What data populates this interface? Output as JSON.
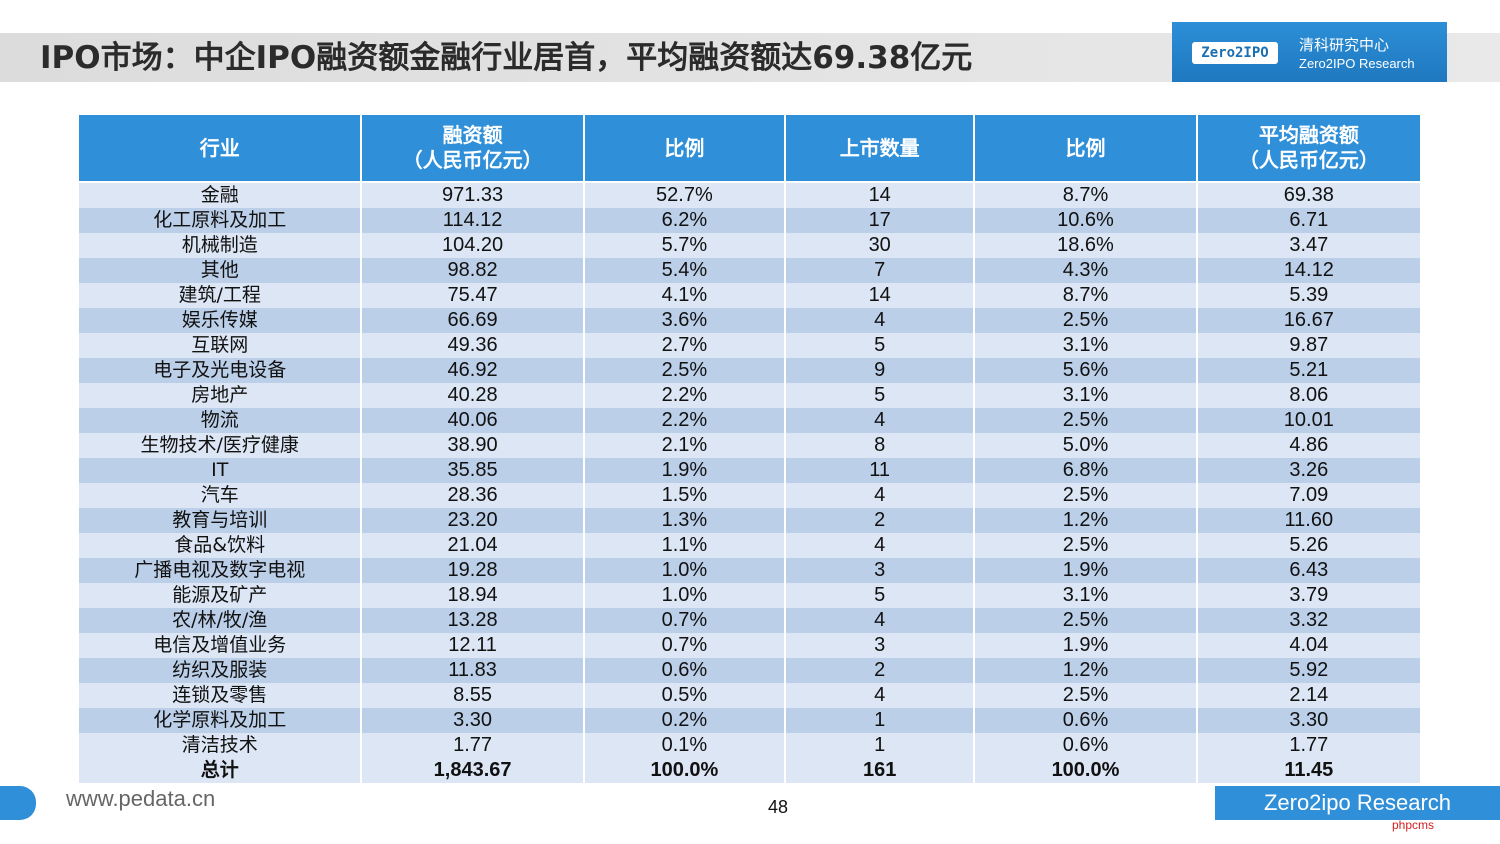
{
  "title": "IPO市场：中企IPO融资额金融行业居首，平均融资额达69.38亿元",
  "logo": {
    "badge": "Zero2IPO",
    "cn": "清科研究中心",
    "en": "Zero2IPO Research"
  },
  "table": {
    "headers": [
      {
        "line1": "行业",
        "line2": ""
      },
      {
        "line1": "融资额",
        "line2": "（人民币亿元）"
      },
      {
        "line1": "比例",
        "line2": ""
      },
      {
        "line1": "上市数量",
        "line2": ""
      },
      {
        "line1": "比例",
        "line2": ""
      },
      {
        "line1": "平均融资额",
        "line2": "（人民币亿元）"
      }
    ],
    "rows": [
      [
        "金融",
        "971.33",
        "52.7%",
        "14",
        "8.7%",
        "69.38"
      ],
      [
        "化工原料及加工",
        "114.12",
        "6.2%",
        "17",
        "10.6%",
        "6.71"
      ],
      [
        "机械制造",
        "104.20",
        "5.7%",
        "30",
        "18.6%",
        "3.47"
      ],
      [
        "其他",
        "98.82",
        "5.4%",
        "7",
        "4.3%",
        "14.12"
      ],
      [
        "建筑/工程",
        "75.47",
        "4.1%",
        "14",
        "8.7%",
        "5.39"
      ],
      [
        "娱乐传媒",
        "66.69",
        "3.6%",
        "4",
        "2.5%",
        "16.67"
      ],
      [
        "互联网",
        "49.36",
        "2.7%",
        "5",
        "3.1%",
        "9.87"
      ],
      [
        "电子及光电设备",
        "46.92",
        "2.5%",
        "9",
        "5.6%",
        "5.21"
      ],
      [
        "房地产",
        "40.28",
        "2.2%",
        "5",
        "3.1%",
        "8.06"
      ],
      [
        "物流",
        "40.06",
        "2.2%",
        "4",
        "2.5%",
        "10.01"
      ],
      [
        "生物技术/医疗健康",
        "38.90",
        "2.1%",
        "8",
        "5.0%",
        "4.86"
      ],
      [
        "IT",
        "35.85",
        "1.9%",
        "11",
        "6.8%",
        "3.26"
      ],
      [
        "汽车",
        "28.36",
        "1.5%",
        "4",
        "2.5%",
        "7.09"
      ],
      [
        "教育与培训",
        "23.20",
        "1.3%",
        "2",
        "1.2%",
        "11.60"
      ],
      [
        "食品&饮料",
        "21.04",
        "1.1%",
        "4",
        "2.5%",
        "5.26"
      ],
      [
        "广播电视及数字电视",
        "19.28",
        "1.0%",
        "3",
        "1.9%",
        "6.43"
      ],
      [
        "能源及矿产",
        "18.94",
        "1.0%",
        "5",
        "3.1%",
        "3.79"
      ],
      [
        "农/林/牧/渔",
        "13.28",
        "0.7%",
        "4",
        "2.5%",
        "3.32"
      ],
      [
        "电信及增值业务",
        "12.11",
        "0.7%",
        "3",
        "1.9%",
        "4.04"
      ],
      [
        "纺织及服装",
        "11.83",
        "0.6%",
        "2",
        "1.2%",
        "5.92"
      ],
      [
        "连锁及零售",
        "8.55",
        "0.5%",
        "4",
        "2.5%",
        "2.14"
      ],
      [
        "化学原料及加工",
        "3.30",
        "0.2%",
        "1",
        "0.6%",
        "3.30"
      ],
      [
        "清洁技术",
        "1.77",
        "0.1%",
        "1",
        "0.6%",
        "1.77"
      ]
    ],
    "total": [
      "总计",
      "1,843.67",
      "100.0%",
      "161",
      "100.0%",
      "11.45"
    ]
  },
  "footer": {
    "url": "www.pedata.cn",
    "page": "48",
    "brand": "Zero2ipo Research",
    "watermark": "phpcms"
  },
  "colors": {
    "header_blue": "#2f8fd8",
    "row_light": "#dce6f4",
    "row_dark": "#bccfe9"
  }
}
